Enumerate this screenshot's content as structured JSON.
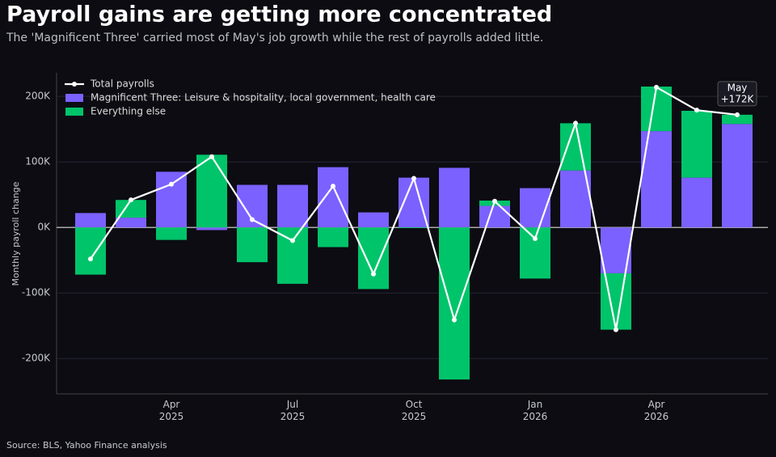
{
  "chart_data": {
    "type": "bar",
    "title": "Payroll gains are getting more concentrated",
    "subtitle": "The 'Magnificent Three' carried most of May's job growth while the rest of payrolls added little.",
    "y_label": "Monthly payroll change",
    "source": "Source: BLS, Yahoo Finance analysis",
    "categories": [
      null,
      null,
      "Apr\n2025",
      null,
      null,
      "Jul\n2025",
      null,
      null,
      "Oct\n2025",
      null,
      null,
      "Jan\n2026",
      null,
      null,
      "Apr\n2026",
      null,
      null
    ],
    "series": [
      {
        "name": "Magnificent Three: Leisure & hospitality, local government, health care",
        "color": "#7b61ff",
        "kind": "bar",
        "values": [
          22,
          15,
          85,
          -4,
          65,
          65,
          92,
          23,
          76,
          91,
          33,
          60,
          87,
          -70,
          147,
          76,
          158
        ]
      },
      {
        "name": "Everything else",
        "color": "#00c46a",
        "kind": "bar",
        "values": [
          -72,
          27,
          -19,
          111,
          -53,
          -86,
          -30,
          -94,
          -1,
          -232,
          8,
          -78,
          72,
          -86,
          68,
          102,
          14
        ]
      },
      {
        "name": "Total payrolls",
        "color": "#ffffff",
        "kind": "line",
        "values": [
          -48,
          42,
          66,
          108,
          12,
          -20,
          63,
          -71,
          75,
          -141,
          40,
          -17,
          159,
          -156,
          214,
          179,
          172
        ]
      }
    ],
    "annotation": {
      "lines": [
        "May",
        "+172K"
      ]
    },
    "ylim": [
      -254,
      236
    ],
    "yticks": [
      {
        "value": -200,
        "label": "-200K"
      },
      {
        "value": -100,
        "label": "-100K"
      },
      {
        "value": 0,
        "label": "0K"
      },
      {
        "value": 100,
        "label": "100K"
      },
      {
        "value": 200,
        "label": "200K"
      }
    ],
    "grid": true,
    "legend": "upper left"
  }
}
